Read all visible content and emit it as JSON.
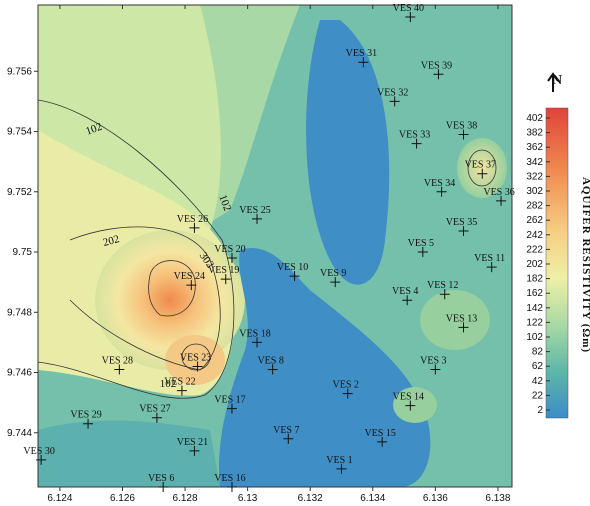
{
  "chart_data": {
    "type": "contour",
    "colorbar_label": "AQUIFER RESISTIVITY (Ωm)",
    "north_label": "N",
    "xlim": [
      6.1233,
      6.13845
    ],
    "ylim": [
      9.7422,
      9.7582
    ],
    "xticks": [
      6.124,
      6.126,
      6.128,
      6.13,
      6.132,
      6.134,
      6.136,
      6.138
    ],
    "yticks": [
      9.744,
      9.746,
      9.748,
      9.75,
      9.752,
      9.754,
      9.756
    ],
    "colorbar_ticks": [
      402,
      382,
      362,
      342,
      322,
      302,
      282,
      262,
      242,
      222,
      202,
      182,
      162,
      142,
      122,
      102,
      82,
      62,
      42,
      22,
      2
    ],
    "contour_labels": [
      "102",
      "202",
      "302",
      "102",
      "102"
    ],
    "points": [
      {
        "name": "VES 1",
        "x": 6.133,
        "y": 9.7428
      },
      {
        "name": "VES 2",
        "x": 6.1332,
        "y": 9.7453
      },
      {
        "name": "VES 3",
        "x": 6.136,
        "y": 9.7461
      },
      {
        "name": "VES 4",
        "x": 6.1351,
        "y": 9.7484
      },
      {
        "name": "VES 5",
        "x": 6.1356,
        "y": 9.75
      },
      {
        "name": "VES 6",
        "x": 6.1273,
        "y": 9.7422
      },
      {
        "name": "VES 7",
        "x": 6.1313,
        "y": 9.7438
      },
      {
        "name": "VES 8",
        "x": 6.1308,
        "y": 9.7461
      },
      {
        "name": "VES 9",
        "x": 6.1328,
        "y": 9.749
      },
      {
        "name": "VES 10",
        "x": 6.1315,
        "y": 9.7492
      },
      {
        "name": "VES 11",
        "x": 6.1378,
        "y": 9.7495
      },
      {
        "name": "VES 12",
        "x": 6.1363,
        "y": 9.7486
      },
      {
        "name": "VES 13",
        "x": 6.1369,
        "y": 9.7475
      },
      {
        "name": "VES 14",
        "x": 6.1352,
        "y": 9.7449
      },
      {
        "name": "VES 15",
        "x": 6.1343,
        "y": 9.7437
      },
      {
        "name": "VES 16",
        "x": 6.1295,
        "y": 9.7422
      },
      {
        "name": "VES 17",
        "x": 6.1295,
        "y": 9.7448
      },
      {
        "name": "VES 18",
        "x": 6.1303,
        "y": 9.747
      },
      {
        "name": "VES 19",
        "x": 6.1293,
        "y": 9.7491
      },
      {
        "name": "VES 20",
        "x": 6.1295,
        "y": 9.7498
      },
      {
        "name": "VES 21",
        "x": 6.1283,
        "y": 9.7434
      },
      {
        "name": "VES 22",
        "x": 6.1279,
        "y": 9.7454
      },
      {
        "name": "VES 23",
        "x": 6.1284,
        "y": 9.7462
      },
      {
        "name": "VES 24",
        "x": 6.1282,
        "y": 9.7489
      },
      {
        "name": "VES 25",
        "x": 6.1303,
        "y": 9.7511
      },
      {
        "name": "VES 26",
        "x": 6.1283,
        "y": 9.7508
      },
      {
        "name": "VES 27",
        "x": 6.1271,
        "y": 9.7445
      },
      {
        "name": "VES 28",
        "x": 6.1259,
        "y": 9.7461
      },
      {
        "name": "VES 29",
        "x": 6.1249,
        "y": 9.7443
      },
      {
        "name": "VES 30",
        "x": 6.1234,
        "y": 9.7431
      },
      {
        "name": "VES 31",
        "x": 6.1337,
        "y": 9.7563
      },
      {
        "name": "VES 32",
        "x": 6.1347,
        "y": 9.755
      },
      {
        "name": "VES 33",
        "x": 6.1354,
        "y": 9.7536
      },
      {
        "name": "VES 34",
        "x": 6.1362,
        "y": 9.752
      },
      {
        "name": "VES 35",
        "x": 6.1369,
        "y": 9.7507
      },
      {
        "name": "VES 36",
        "x": 6.1381,
        "y": 9.7517
      },
      {
        "name": "VES 37",
        "x": 6.1375,
        "y": 9.7526
      },
      {
        "name": "VES 38",
        "x": 6.1369,
        "y": 9.7539
      },
      {
        "name": "VES 39",
        "x": 6.1361,
        "y": 9.7559
      },
      {
        "name": "VES 40",
        "x": 6.1352,
        "y": 9.7578
      }
    ]
  }
}
